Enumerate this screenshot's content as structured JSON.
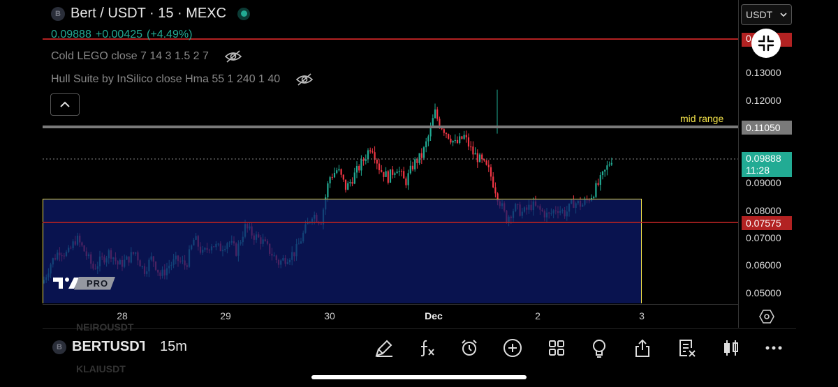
{
  "header": {
    "coin_letter": "B",
    "title": "Bert / USDT · 15 · MEXC",
    "last_price": "0.09888",
    "change": "+0.00425",
    "change_pct": "(+4.49%)"
  },
  "indicators": [
    {
      "label": "Cold LEGO close 7 14 3 1.5 2 7"
    },
    {
      "label": "Hull Suite by InSilico close Hma 55 1 240 1 40"
    }
  ],
  "price_axis": {
    "currency_selector": "USDT",
    "ticks": [
      "0.13000",
      "0.12000",
      "0.11050",
      "0.09000",
      "0.08000",
      "0.07000",
      "0.06000",
      "0.05000"
    ],
    "labels": {
      "top_hidden": "0.1xx0",
      "current": "0.09888",
      "countdown": "11:28",
      "mid_range": "0.11050",
      "support": "0.07575"
    }
  },
  "annotations": {
    "mid_range_label": "mid range"
  },
  "time_axis": {
    "labels": [
      "28",
      "29",
      "30",
      "Dec",
      "2",
      "3"
    ]
  },
  "watermark": {
    "pro_label": "PRO"
  },
  "bottom_bar": {
    "coin_letter": "B",
    "symbol": "BERTUSDT",
    "interval": "15m",
    "ghost_top": "NEIROUSDT",
    "ghost_bottom": "KLAIUSDT",
    "tools": [
      "brush-icon",
      "fx-icon",
      "alarm-icon",
      "plus-circle-icon",
      "grid-icon",
      "lightbulb-icon",
      "share-icon",
      "watchlist-icon",
      "candles-icon",
      "more-icon"
    ]
  },
  "colors": {
    "up": "#22ab94",
    "down": "#f23645",
    "range_fill": "#0d1b5e",
    "range_border": "#f2e24a",
    "mid_line": "#888888",
    "support_line": "#b22222"
  },
  "chart_data": {
    "type": "candlestick",
    "interval": "15",
    "y_ticks": [
      0.05,
      0.06,
      0.07,
      0.08,
      0.09,
      0.12,
      0.13
    ],
    "x_ticks": [
      "28",
      "29",
      "30",
      "Dec",
      "2",
      "3"
    ],
    "levels": {
      "mid_range": 0.1105,
      "support": 0.07575,
      "range_box": [
        0.0432,
        0.0848
      ],
      "top_red_line": 0.1325
    },
    "last_price": 0.09888,
    "path": [
      [
        0.0,
        0.0535
      ],
      [
        0.02,
        0.061
      ],
      [
        0.04,
        0.0655
      ],
      [
        0.06,
        0.064
      ],
      [
        0.08,
        0.07
      ],
      [
        0.1,
        0.065
      ],
      [
        0.12,
        0.059
      ],
      [
        0.14,
        0.062
      ],
      [
        0.16,
        0.065
      ],
      [
        0.18,
        0.06
      ],
      [
        0.2,
        0.062
      ],
      [
        0.22,
        0.065
      ],
      [
        0.24,
        0.058
      ],
      [
        0.26,
        0.063
      ],
      [
        0.28,
        0.056
      ],
      [
        0.3,
        0.06
      ],
      [
        0.32,
        0.062
      ],
      [
        0.34,
        0.06
      ],
      [
        0.36,
        0.07
      ],
      [
        0.38,
        0.064
      ],
      [
        0.4,
        0.068
      ],
      [
        0.42,
        0.066
      ],
      [
        0.44,
        0.069
      ],
      [
        0.46,
        0.065
      ],
      [
        0.48,
        0.074
      ],
      [
        0.5,
        0.071
      ],
      [
        0.52,
        0.069
      ],
      [
        0.54,
        0.065
      ],
      [
        0.56,
        0.061
      ],
      [
        0.58,
        0.063
      ],
      [
        0.6,
        0.065
      ],
      [
        0.62,
        0.072
      ],
      [
        0.64,
        0.079
      ],
      [
        0.66,
        0.076
      ],
      [
        0.68,
        0.092
      ],
      [
        0.7,
        0.095
      ],
      [
        0.72,
        0.088
      ],
      [
        0.74,
        0.093
      ],
      [
        0.76,
        0.098
      ],
      [
        0.78,
        0.104
      ],
      [
        0.8,
        0.095
      ],
      [
        0.82,
        0.092
      ],
      [
        0.84,
        0.096
      ],
      [
        0.86,
        0.09
      ],
      [
        0.88,
        0.097
      ],
      [
        0.9,
        0.1
      ],
      [
        0.92,
        0.109
      ],
      [
        0.93,
        0.116
      ],
      [
        0.94,
        0.112
      ],
      [
        0.96,
        0.108
      ],
      [
        0.98,
        0.104
      ],
      [
        1.0,
        0.107
      ],
      [
        1.02,
        0.101
      ],
      [
        1.04,
        0.098
      ],
      [
        1.06,
        0.094
      ],
      [
        1.08,
        0.085
      ],
      [
        1.1,
        0.077
      ],
      [
        1.12,
        0.081
      ],
      [
        1.14,
        0.079
      ],
      [
        1.16,
        0.082
      ],
      [
        1.18,
        0.08
      ],
      [
        1.2,
        0.078
      ],
      [
        1.22,
        0.081
      ],
      [
        1.24,
        0.079
      ],
      [
        1.26,
        0.083
      ],
      [
        1.28,
        0.082
      ],
      [
        1.3,
        0.085
      ],
      [
        1.32,
        0.09
      ],
      [
        1.34,
        0.096
      ],
      [
        1.35,
        0.099
      ]
    ]
  }
}
